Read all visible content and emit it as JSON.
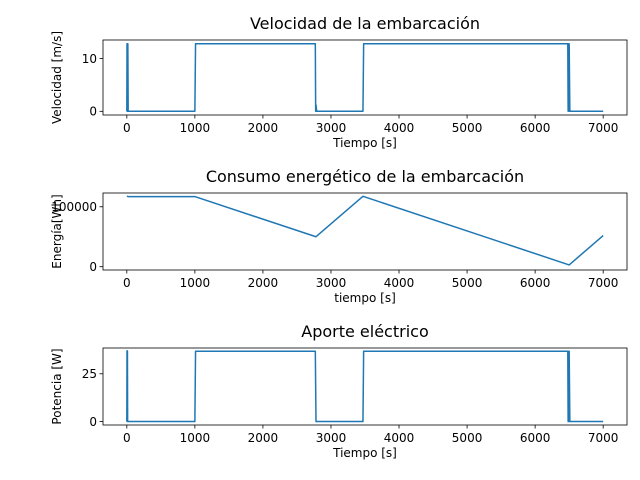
{
  "chart_data": [
    {
      "type": "line",
      "title": "Velocidad de la embarcación",
      "xlabel": "Tiempo [s]",
      "ylabel": "Velocidad [m/s]",
      "xlim": [
        -350,
        7350
      ],
      "ylim": [
        -0.7,
        13.5
      ],
      "xticks": [
        0,
        1000,
        2000,
        3000,
        4000,
        5000,
        6000,
        7000
      ],
      "yticks": [
        0,
        10
      ],
      "grid": false,
      "color": "#1f77b4",
      "series": [
        {
          "x": [
            0,
            3,
            6,
            9,
            12,
            15,
            20,
            25,
            1000,
            1010,
            2770,
            2775,
            2780,
            2790,
            3470,
            3480,
            6480,
            6485,
            6490,
            6495,
            6500,
            6510,
            7000
          ],
          "y": [
            0,
            12.8,
            0,
            12.8,
            0,
            12.8,
            0,
            0,
            0,
            12.8,
            12.8,
            0,
            1.2,
            0,
            0,
            12.8,
            12.8,
            0,
            12.8,
            0,
            12.8,
            0,
            0
          ]
        }
      ]
    },
    {
      "type": "line",
      "title": "Consumo energético de la embarcación",
      "xlabel": "tiempo [s]",
      "ylabel": "Energía[Wh]",
      "xlim": [
        -350,
        7350
      ],
      "ylim": [
        -5500,
        123000
      ],
      "xticks": [
        0,
        1000,
        2000,
        3000,
        4000,
        5000,
        6000,
        7000
      ],
      "yticks": [
        0,
        100000
      ],
      "grid": false,
      "color": "#1f77b4",
      "series": [
        {
          "x": [
            0,
            30,
            1000,
            2780,
            3470,
            6500,
            7000
          ],
          "y": [
            117500,
            117000,
            117000,
            50000,
            117500,
            3000,
            52000
          ]
        }
      ]
    },
    {
      "type": "line",
      "title": "Aporte eléctrico",
      "xlabel": "Tiempo [s]",
      "ylabel": "Potencia [W]",
      "xlim": [
        -350,
        7350
      ],
      "ylim": [
        -1.8,
        38.5
      ],
      "xticks": [
        0,
        1000,
        2000,
        3000,
        4000,
        5000,
        6000,
        7000
      ],
      "yticks": [
        0,
        25
      ],
      "grid": false,
      "color": "#1f77b4",
      "series": [
        {
          "x": [
            0,
            3,
            6,
            9,
            12,
            20,
            1000,
            1010,
            2770,
            2780,
            3470,
            3480,
            6480,
            6485,
            6490,
            6495,
            6500,
            6510,
            7000
          ],
          "y": [
            0,
            37,
            0,
            37,
            0,
            0,
            0,
            36.8,
            36.8,
            0,
            0,
            36.8,
            36.8,
            0,
            36.8,
            0,
            36.8,
            0,
            0
          ]
        }
      ]
    }
  ]
}
